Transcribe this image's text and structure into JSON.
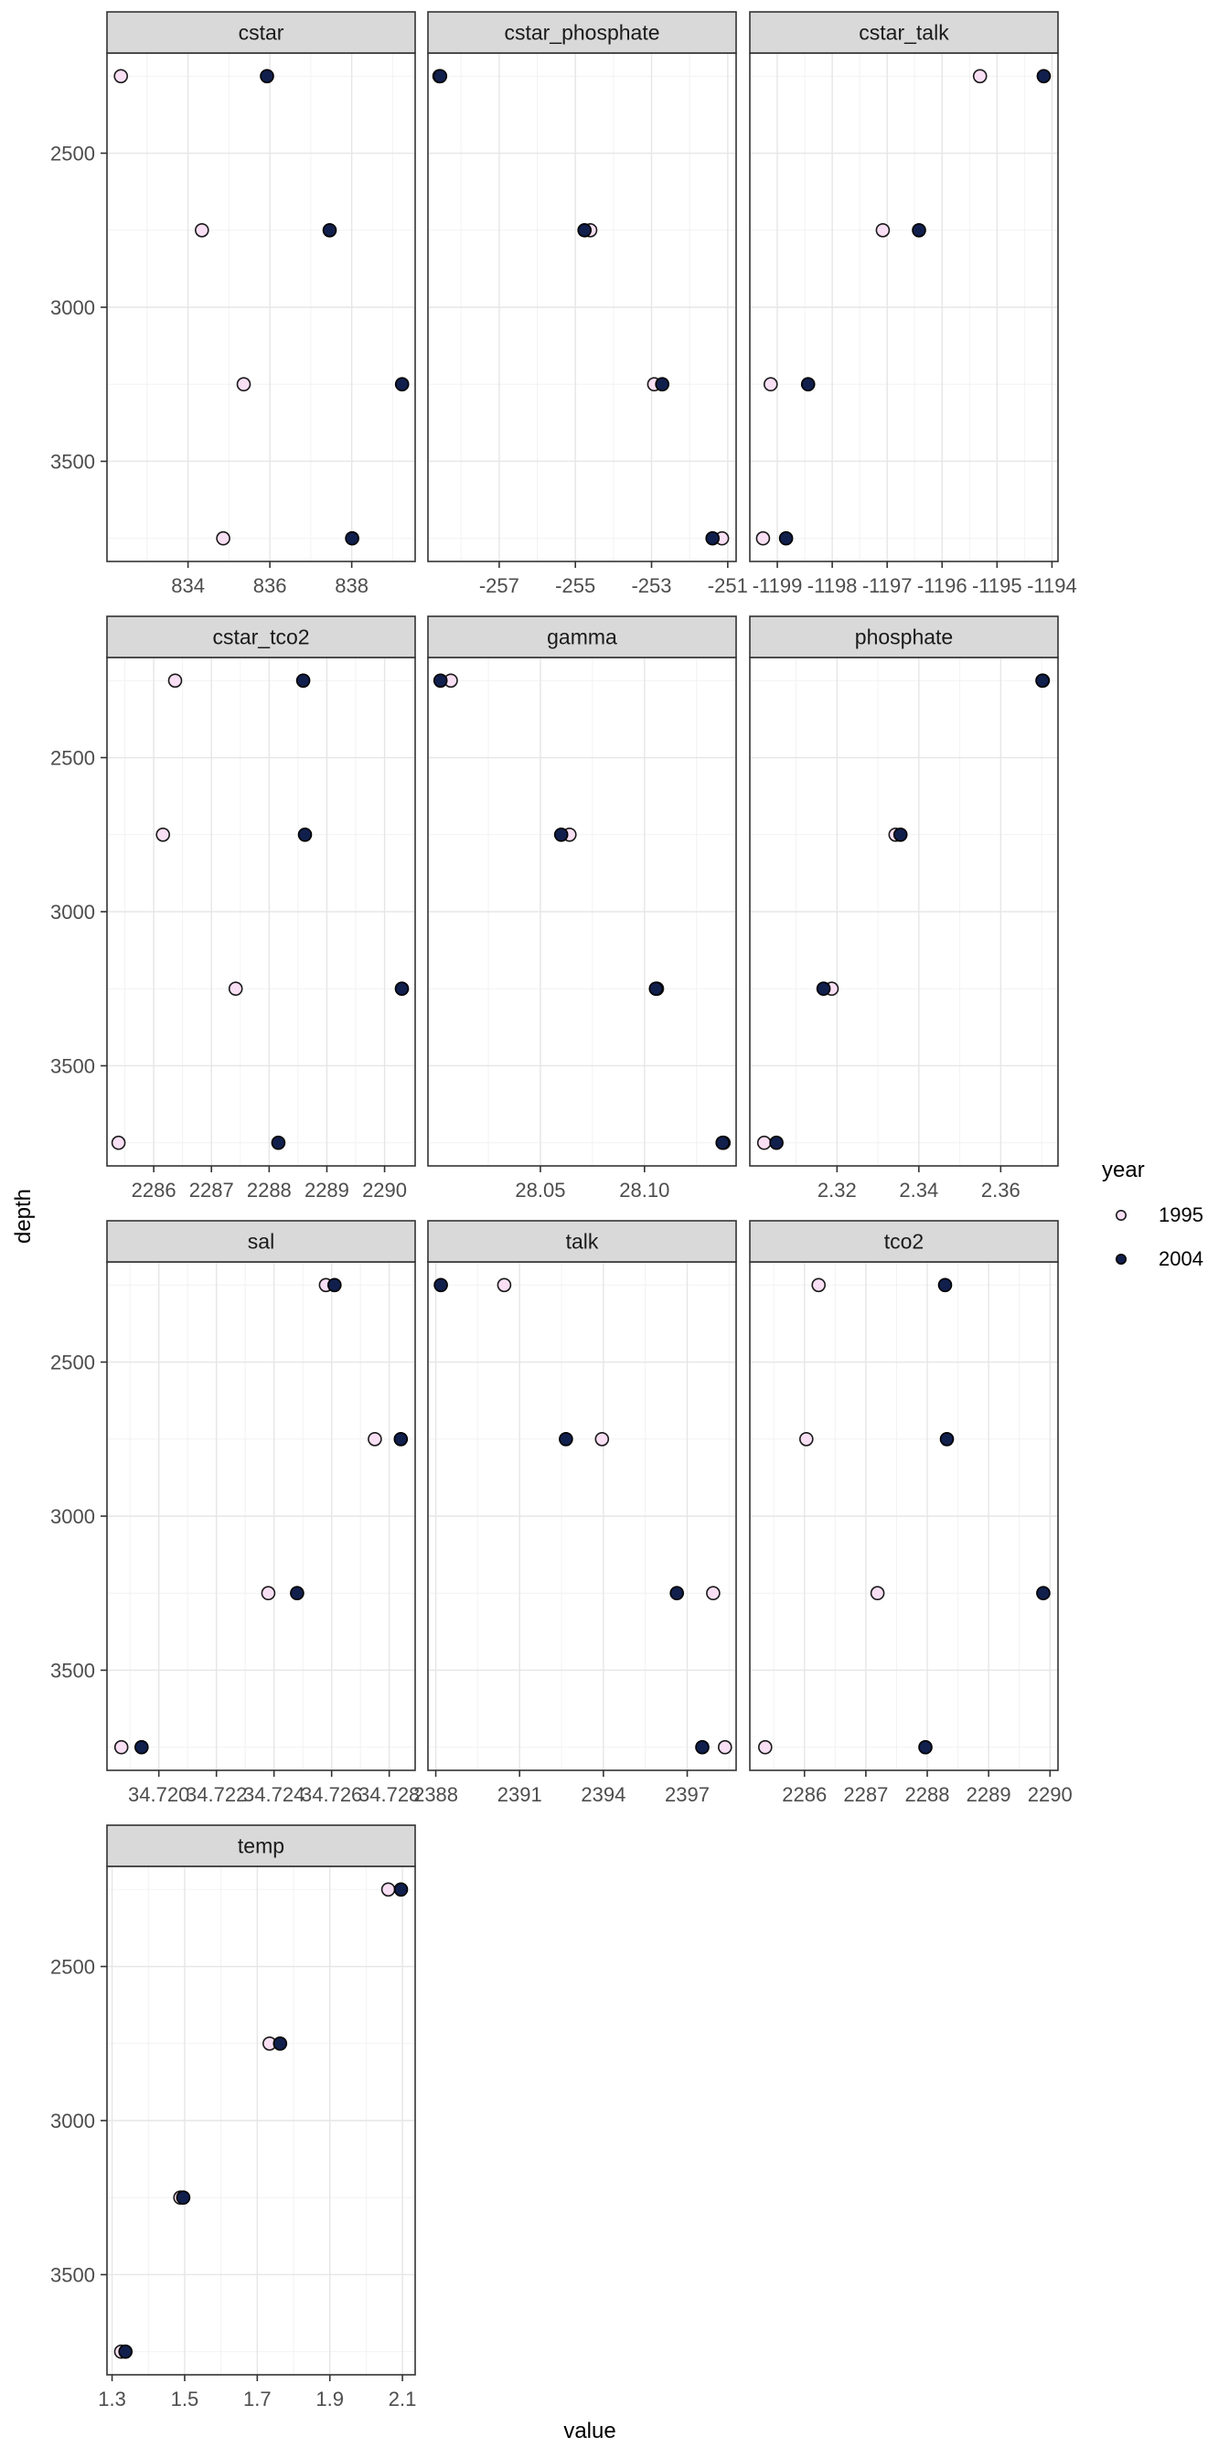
{
  "axes": {
    "x_title": "value",
    "y_title": "depth"
  },
  "legend": {
    "title": "year",
    "items": [
      {
        "label": "1995",
        "type": "open"
      },
      {
        "label": "2004",
        "type": "filled"
      }
    ]
  },
  "colors": {
    "background": "#FFFFFF",
    "open_fill": "#F9DFF4",
    "open_stroke": "#1A1A1A",
    "filled_fill": "#111F4D",
    "filled_stroke": "#000000",
    "header_bg": "#D9D9D9",
    "header_border": "#333333",
    "header_text": "#1A1A1A",
    "panel_border": "#333333",
    "grid_major": "#E6E6E6",
    "grid_minor": "#F2F2F2",
    "tick_mark": "#333333",
    "tick_label": "#4D4D4D"
  },
  "chart_data": {
    "type": "scatter",
    "title": "",
    "xlabel": "value",
    "ylabel": "depth",
    "legend_position": "right",
    "grid": true,
    "y_axis": {
      "lim": [
        2175,
        3825
      ],
      "reversed": true,
      "ticks": [
        {
          "v": 2500,
          "t": "2500"
        },
        {
          "v": 3000,
          "t": "3000"
        },
        {
          "v": 3500,
          "t": "3500"
        }
      ],
      "minor": [
        2250,
        2750,
        3250,
        3750
      ]
    },
    "depths": [
      2250,
      2750,
      3250,
      3750
    ],
    "series_names": [
      "1995",
      "2004"
    ],
    "facets": [
      {
        "label": "cstar",
        "xlim": [
          832.02,
          839.55
        ],
        "ticks": [
          {
            "v": 834,
            "t": "834"
          },
          {
            "v": 836,
            "t": "836"
          },
          {
            "v": 838,
            "t": "838"
          }
        ],
        "series": {
          "1995": [
            832.36,
            834.34,
            835.36,
            834.86
          ],
          "2004": [
            835.93,
            837.46,
            839.23,
            838.01
          ]
        }
      },
      {
        "label": "cstar_phosphate",
        "xlim": [
          -258.87,
          -250.78
        ],
        "ticks": [
          {
            "v": -257,
            "t": "-257"
          },
          {
            "v": -255,
            "t": "-255"
          },
          {
            "v": -253,
            "t": "-253"
          },
          {
            "v": -251,
            "t": "-251"
          }
        ],
        "series": {
          "1995": [
            -258.57,
            -254.61,
            -252.93,
            -251.15
          ],
          "2004": [
            -258.55,
            -254.76,
            -252.72,
            -251.4
          ]
        }
      },
      {
        "label": "cstar_talk",
        "xlim": [
          -1199.5,
          -1193.89
        ],
        "ticks": [
          {
            "v": -1199,
            "t": "-1199"
          },
          {
            "v": -1198,
            "t": "-1198"
          },
          {
            "v": -1197,
            "t": "-1197"
          },
          {
            "v": -1196,
            "t": "-1196"
          },
          {
            "v": -1195,
            "t": "-1195"
          },
          {
            "v": -1194,
            "t": "-1194"
          }
        ],
        "series": {
          "1995": [
            -1195.31,
            -1197.08,
            -1199.12,
            -1199.26
          ],
          "2004": [
            -1194.15,
            -1196.42,
            -1198.44,
            -1198.84
          ]
        }
      },
      {
        "label": "cstar_tco2",
        "xlim": [
          2285.19,
          2290.53
        ],
        "ticks": [
          {
            "v": 2286,
            "t": "2286"
          },
          {
            "v": 2287,
            "t": "2287"
          },
          {
            "v": 2288,
            "t": "2288"
          },
          {
            "v": 2289,
            "t": "2289"
          },
          {
            "v": 2290,
            "t": "2290"
          }
        ],
        "series": {
          "1995": [
            2286.37,
            2286.16,
            2287.42,
            2285.39
          ],
          "2004": [
            2288.59,
            2288.62,
            2290.3,
            2288.16
          ]
        }
      },
      {
        "label": "gamma",
        "xlim": [
          27.996,
          28.144
        ],
        "ticks": [
          {
            "v": 28.05,
            "t": "28.05"
          },
          {
            "v": 28.1,
            "t": "28.10"
          }
        ],
        "series": {
          "1995": [
            28.007,
            28.064,
            28.106,
            28.138
          ],
          "2004": [
            28.002,
            28.06,
            28.1055,
            28.1375
          ]
        }
      },
      {
        "label": "phosphate",
        "xlim": [
          2.2987,
          2.374
        ],
        "ticks": [
          {
            "v": 2.32,
            "t": "2.32"
          },
          {
            "v": 2.34,
            "t": "2.34"
          },
          {
            "v": 2.36,
            "t": "2.36"
          }
        ],
        "series": {
          "1995": [
            2.3703,
            2.3343,
            2.3187,
            2.3022
          ],
          "2004": [
            2.3702,
            2.3355,
            2.3167,
            2.3052
          ]
        }
      },
      {
        "label": "sal",
        "xlim": [
          34.7182,
          34.7289
        ],
        "ticks": [
          {
            "v": 34.72,
            "t": "34.720"
          },
          {
            "v": 34.722,
            "t": "34.722"
          },
          {
            "v": 34.724,
            "t": "34.724"
          },
          {
            "v": 34.726,
            "t": "34.726"
          },
          {
            "v": 34.728,
            "t": "34.728"
          }
        ],
        "series": {
          "1995": [
            34.7258,
            34.7275,
            34.7238,
            34.7187
          ],
          "2004": [
            34.7261,
            34.7284,
            34.7248,
            34.7194
          ]
        }
      },
      {
        "label": "talk",
        "xlim": [
          2387.72,
          2398.75
        ],
        "ticks": [
          {
            "v": 2388,
            "t": "2388"
          },
          {
            "v": 2391,
            "t": "2391"
          },
          {
            "v": 2394,
            "t": "2394"
          },
          {
            "v": 2397,
            "t": "2397"
          }
        ],
        "series": {
          "1995": [
            2390.45,
            2393.95,
            2397.93,
            2398.35
          ],
          "2004": [
            2388.18,
            2392.66,
            2396.63,
            2397.54
          ]
        }
      },
      {
        "label": "tco2",
        "xlim": [
          2285.11,
          2290.13
        ],
        "ticks": [
          {
            "v": 2286,
            "t": "2286"
          },
          {
            "v": 2287,
            "t": "2287"
          },
          {
            "v": 2288,
            "t": "2288"
          },
          {
            "v": 2289,
            "t": "2289"
          },
          {
            "v": 2290,
            "t": "2290"
          }
        ],
        "series": {
          "1995": [
            2286.23,
            2286.03,
            2287.19,
            2285.36
          ],
          "2004": [
            2288.29,
            2288.32,
            2289.89,
            2287.97
          ]
        }
      },
      {
        "label": "temp",
        "xlim": [
          1.286,
          2.135
        ],
        "ticks": [
          {
            "v": 1.3,
            "t": "1.3"
          },
          {
            "v": 1.5,
            "t": "1.5"
          },
          {
            "v": 1.7,
            "t": "1.7"
          },
          {
            "v": 1.9,
            "t": "1.9"
          },
          {
            "v": 2.1,
            "t": "2.1"
          }
        ],
        "series": {
          "1995": [
            2.061,
            1.734,
            1.488,
            1.325
          ],
          "2004": [
            2.096,
            1.763,
            1.496,
            1.337
          ]
        }
      }
    ]
  }
}
